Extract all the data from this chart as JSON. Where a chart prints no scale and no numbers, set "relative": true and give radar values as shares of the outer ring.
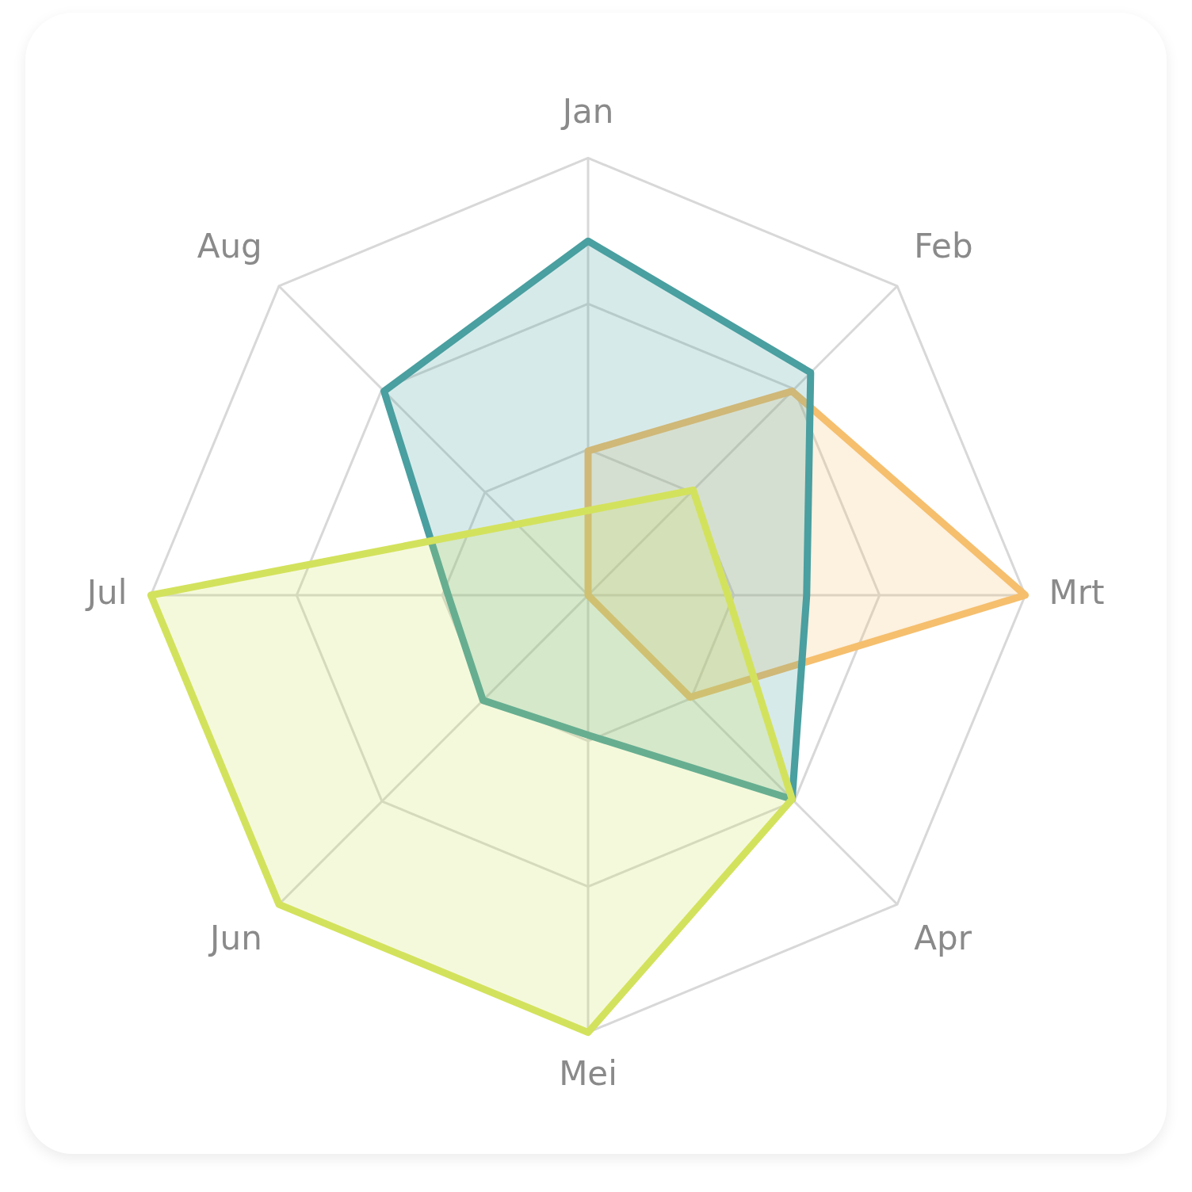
{
  "chart_data": {
    "type": "radar",
    "relative": true,
    "categories": [
      "Jan",
      "Feb",
      "Mrt",
      "Apr",
      "Mei",
      "Jun",
      "Jul",
      "Aug"
    ],
    "series": [
      {
        "color": "#4a9fa0",
        "values": [
          0.81,
          0.72,
          0.5,
          0.66,
          0.32,
          0.34,
          0.32,
          0.66
        ]
      },
      {
        "color": "#f5bf6e",
        "values": [
          0.33,
          0.66,
          1,
          0.33,
          0,
          0,
          0,
          0
        ]
      },
      {
        "color": "#d3e25c",
        "values": [
          null,
          0.34,
          0.32,
          0.66,
          1,
          1,
          1,
          null
        ]
      }
    ],
    "grid": true,
    "legend": false,
    "marker": "none",
    "line_style": "solid"
  }
}
